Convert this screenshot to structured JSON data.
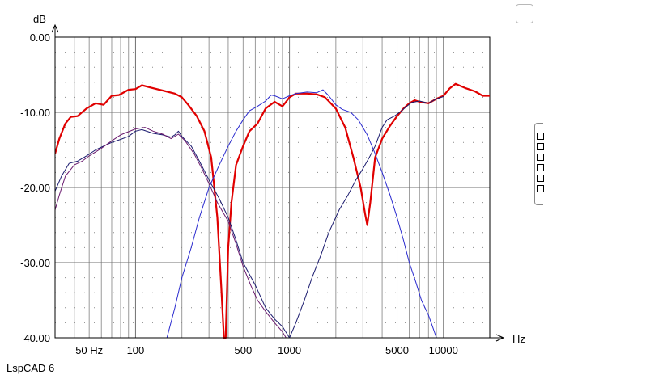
{
  "app_label": "LspCAD 6",
  "chart_data": {
    "type": "line",
    "x_scale": "log",
    "xlim": [
      30,
      20000
    ],
    "ylim": [
      -40,
      0
    ],
    "grid": true,
    "xlabel": "Hz",
    "ylabel": "dB",
    "y_ticks": [
      {
        "value": 0,
        "label": "0.00"
      },
      {
        "value": -10,
        "label": "-10.00"
      },
      {
        "value": -20,
        "label": "-20.00"
      },
      {
        "value": -30,
        "label": "-30.00"
      },
      {
        "value": -40,
        "label": "-40.00"
      }
    ],
    "x_ticks": [
      {
        "value": 50,
        "label": "50 Hz"
      },
      {
        "value": 100,
        "label": "100"
      },
      {
        "value": 500,
        "label": "500"
      },
      {
        "value": 1000,
        "label": "1000"
      },
      {
        "value": 5000,
        "label": "5000"
      },
      {
        "value": 10000,
        "label": "10000"
      }
    ],
    "series": [
      {
        "color": "#e00000",
        "width": 2.2,
        "points": [
          [
            30,
            -15.5
          ],
          [
            32,
            -13.5
          ],
          [
            35,
            -11.5
          ],
          [
            38,
            -10.6
          ],
          [
            42,
            -10.5
          ],
          [
            48,
            -9.5
          ],
          [
            55,
            -8.8
          ],
          [
            62,
            -9.0
          ],
          [
            70,
            -7.8
          ],
          [
            78,
            -7.7
          ],
          [
            90,
            -7.0
          ],
          [
            100,
            -6.9
          ],
          [
            110,
            -6.4
          ],
          [
            125,
            -6.7
          ],
          [
            150,
            -7.1
          ],
          [
            180,
            -7.5
          ],
          [
            200,
            -8.0
          ],
          [
            220,
            -9.0
          ],
          [
            250,
            -10.5
          ],
          [
            280,
            -12.5
          ],
          [
            310,
            -16.0
          ],
          [
            340,
            -24.0
          ],
          [
            360,
            -33.0
          ],
          [
            375,
            -40.0
          ],
          [
            385,
            -40.0
          ],
          [
            400,
            -28.0
          ],
          [
            420,
            -22.0
          ],
          [
            450,
            -17.0
          ],
          [
            500,
            -14.5
          ],
          [
            550,
            -12.5
          ],
          [
            620,
            -11.5
          ],
          [
            700,
            -9.5
          ],
          [
            800,
            -8.6
          ],
          [
            900,
            -9.2
          ],
          [
            950,
            -8.6
          ],
          [
            1000,
            -8.0
          ],
          [
            1100,
            -7.5
          ],
          [
            1300,
            -7.5
          ],
          [
            1500,
            -7.6
          ],
          [
            1700,
            -8.0
          ],
          [
            2000,
            -9.5
          ],
          [
            2300,
            -12.0
          ],
          [
            2600,
            -16.0
          ],
          [
            2900,
            -20.0
          ],
          [
            3100,
            -23.5
          ],
          [
            3200,
            -25.0
          ],
          [
            3350,
            -22.0
          ],
          [
            3600,
            -16.0
          ],
          [
            4000,
            -13.5
          ],
          [
            4500,
            -11.8
          ],
          [
            5000,
            -10.5
          ],
          [
            5500,
            -9.5
          ],
          [
            6000,
            -8.8
          ],
          [
            6500,
            -8.4
          ],
          [
            7000,
            -8.6
          ],
          [
            8000,
            -8.8
          ],
          [
            9000,
            -8.2
          ],
          [
            10000,
            -7.8
          ],
          [
            11000,
            -6.8
          ],
          [
            12000,
            -6.2
          ],
          [
            14000,
            -6.8
          ],
          [
            16000,
            -7.2
          ],
          [
            18000,
            -7.8
          ],
          [
            20000,
            -7.8
          ]
        ]
      },
      {
        "color": "#1a1a6e",
        "width": 1,
        "points": [
          [
            30,
            -20.5
          ],
          [
            33,
            -18.5
          ],
          [
            37,
            -16.8
          ],
          [
            42,
            -16.5
          ],
          [
            48,
            -15.8
          ],
          [
            55,
            -15.0
          ],
          [
            62,
            -14.5
          ],
          [
            70,
            -14.0
          ],
          [
            80,
            -13.6
          ],
          [
            90,
            -13.2
          ],
          [
            100,
            -12.5
          ],
          [
            110,
            -12.3
          ],
          [
            130,
            -12.8
          ],
          [
            150,
            -13.0
          ],
          [
            170,
            -13.3
          ],
          [
            180,
            -13.0
          ],
          [
            190,
            -12.5
          ],
          [
            200,
            -13.2
          ],
          [
            230,
            -14.5
          ],
          [
            260,
            -16.5
          ],
          [
            300,
            -19.0
          ],
          [
            350,
            -21.5
          ],
          [
            400,
            -24.0
          ],
          [
            450,
            -27.0
          ],
          [
            500,
            -30.0
          ],
          [
            600,
            -33.0
          ],
          [
            700,
            -36.0
          ],
          [
            800,
            -37.5
          ],
          [
            900,
            -38.5
          ],
          [
            1000,
            -40.0
          ]
        ]
      },
      {
        "color": "#6a1a6e",
        "width": 1,
        "points": [
          [
            30,
            -23.0
          ],
          [
            32,
            -21.0
          ],
          [
            35,
            -18.5
          ],
          [
            40,
            -17.0
          ],
          [
            45,
            -16.5
          ],
          [
            50,
            -15.8
          ],
          [
            60,
            -14.8
          ],
          [
            70,
            -13.8
          ],
          [
            80,
            -13.0
          ],
          [
            100,
            -12.2
          ],
          [
            115,
            -12.0
          ],
          [
            130,
            -12.5
          ],
          [
            150,
            -12.9
          ],
          [
            170,
            -13.5
          ],
          [
            190,
            -12.9
          ],
          [
            210,
            -13.8
          ],
          [
            240,
            -15.5
          ],
          [
            270,
            -17.5
          ],
          [
            300,
            -19.5
          ],
          [
            340,
            -22.0
          ],
          [
            400,
            -24.5
          ],
          [
            450,
            -27.5
          ],
          [
            500,
            -30.5
          ],
          [
            560,
            -33.0
          ],
          [
            620,
            -35.0
          ],
          [
            700,
            -36.5
          ],
          [
            800,
            -38.0
          ],
          [
            900,
            -39.2
          ],
          [
            950,
            -40.0
          ]
        ]
      },
      {
        "color": "#2b2bcf",
        "width": 1,
        "points": [
          [
            160,
            -40.0
          ],
          [
            180,
            -36.0
          ],
          [
            200,
            -32.0
          ],
          [
            230,
            -28.0
          ],
          [
            260,
            -24.0
          ],
          [
            300,
            -20.0
          ],
          [
            350,
            -17.0
          ],
          [
            400,
            -14.5
          ],
          [
            450,
            -12.5
          ],
          [
            500,
            -11.0
          ],
          [
            550,
            -9.8
          ],
          [
            620,
            -9.2
          ],
          [
            700,
            -8.5
          ],
          [
            760,
            -7.7
          ],
          [
            800,
            -7.8
          ],
          [
            900,
            -8.2
          ],
          [
            1000,
            -7.8
          ],
          [
            1100,
            -7.5
          ],
          [
            1300,
            -7.3
          ],
          [
            1500,
            -7.4
          ],
          [
            1650,
            -7.0
          ],
          [
            1800,
            -7.8
          ],
          [
            2000,
            -9.0
          ],
          [
            2200,
            -9.6
          ],
          [
            2500,
            -10.0
          ],
          [
            2800,
            -11.0
          ],
          [
            3200,
            -13.0
          ],
          [
            3600,
            -15.5
          ],
          [
            4000,
            -18.0
          ],
          [
            4500,
            -21.0
          ],
          [
            5000,
            -24.0
          ],
          [
            5500,
            -27.0
          ],
          [
            6000,
            -30.0
          ],
          [
            6600,
            -32.5
          ],
          [
            7200,
            -35.0
          ],
          [
            8000,
            -37.0
          ],
          [
            8500,
            -38.5
          ],
          [
            9000,
            -40.0
          ]
        ]
      },
      {
        "color": "#1a1a6e",
        "width": 1,
        "points": [
          [
            1000,
            -40.0
          ],
          [
            1100,
            -38.0
          ],
          [
            1250,
            -35.0
          ],
          [
            1400,
            -32.0
          ],
          [
            1600,
            -29.0
          ],
          [
            1800,
            -26.0
          ],
          [
            2100,
            -23.0
          ],
          [
            2400,
            -21.0
          ],
          [
            2700,
            -19.0
          ],
          [
            3000,
            -17.5
          ],
          [
            3300,
            -16.0
          ],
          [
            3600,
            -14.5
          ],
          [
            4000,
            -12.0
          ],
          [
            4300,
            -11.0
          ],
          [
            4800,
            -10.5
          ],
          [
            5200,
            -10.0
          ],
          [
            5700,
            -9.3
          ],
          [
            6200,
            -8.7
          ],
          [
            7000,
            -8.5
          ],
          [
            8000,
            -8.8
          ],
          [
            9000,
            -8.2
          ],
          [
            10000,
            -7.9
          ]
        ]
      }
    ]
  }
}
